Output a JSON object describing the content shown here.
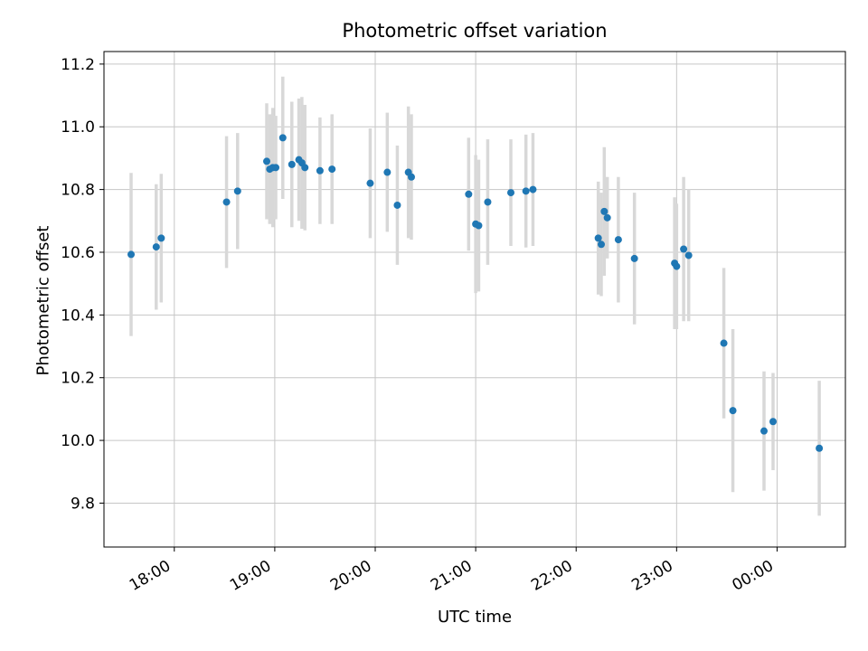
{
  "chart_data": {
    "type": "scatter",
    "title": "Photometric offset variation",
    "xlabel": "UTC time",
    "ylabel": "Photometric offset",
    "grid": true,
    "legend": "none",
    "xlim": [
      17.3,
      24.68
    ],
    "ylim": [
      9.66,
      11.24
    ],
    "x_ticks": [
      {
        "v": 18,
        "label": "18:00"
      },
      {
        "v": 19,
        "label": "19:00"
      },
      {
        "v": 20,
        "label": "20:00"
      },
      {
        "v": 21,
        "label": "21:00"
      },
      {
        "v": 22,
        "label": "22:00"
      },
      {
        "v": 23,
        "label": "23:00"
      },
      {
        "v": 24,
        "label": "00:00"
      }
    ],
    "y_ticks": [
      {
        "v": 9.8,
        "label": "9.8"
      },
      {
        "v": 10.0,
        "label": "10.0"
      },
      {
        "v": 10.2,
        "label": "10.2"
      },
      {
        "v": 10.4,
        "label": "10.4"
      },
      {
        "v": 10.6,
        "label": "10.6"
      },
      {
        "v": 10.8,
        "label": "10.8"
      },
      {
        "v": 11.0,
        "label": "11.0"
      },
      {
        "v": 11.2,
        "label": "11.2"
      }
    ],
    "marker_color": "#1f77b4",
    "errorbar_color": "#d8d8d8",
    "grid_color": "#c6c6c6",
    "spine_color": "#000000",
    "tick_label_color": "#000000",
    "points_format": [
      "utc_hour_decimal",
      "photometric_offset",
      "error"
    ],
    "points": [
      [
        17.57,
        10.593,
        0.26
      ],
      [
        17.82,
        10.617,
        0.2
      ],
      [
        17.87,
        10.645,
        0.205
      ],
      [
        18.52,
        10.76,
        0.21
      ],
      [
        18.63,
        10.795,
        0.185
      ],
      [
        18.92,
        10.89,
        0.185
      ],
      [
        18.95,
        10.865,
        0.175
      ],
      [
        18.98,
        10.87,
        0.19
      ],
      [
        19.01,
        10.87,
        0.165
      ],
      [
        19.08,
        10.965,
        0.195
      ],
      [
        19.17,
        10.88,
        0.2
      ],
      [
        19.24,
        10.895,
        0.195
      ],
      [
        19.27,
        10.885,
        0.21
      ],
      [
        19.3,
        10.87,
        0.2
      ],
      [
        19.45,
        10.86,
        0.17
      ],
      [
        19.57,
        10.865,
        0.175
      ],
      [
        19.95,
        10.82,
        0.175
      ],
      [
        20.12,
        10.855,
        0.19
      ],
      [
        20.22,
        10.75,
        0.19
      ],
      [
        20.33,
        10.855,
        0.21
      ],
      [
        20.36,
        10.84,
        0.2
      ],
      [
        20.93,
        10.785,
        0.18
      ],
      [
        21.0,
        10.69,
        0.22
      ],
      [
        21.03,
        10.685,
        0.21
      ],
      [
        21.12,
        10.76,
        0.2
      ],
      [
        21.35,
        10.79,
        0.17
      ],
      [
        21.5,
        10.795,
        0.18
      ],
      [
        21.57,
        10.8,
        0.18
      ],
      [
        22.22,
        10.645,
        0.18
      ],
      [
        22.25,
        10.625,
        0.165
      ],
      [
        22.28,
        10.73,
        0.205
      ],
      [
        22.31,
        10.71,
        0.13
      ],
      [
        22.42,
        10.64,
        0.2
      ],
      [
        22.58,
        10.58,
        0.21
      ],
      [
        22.98,
        10.565,
        0.21
      ],
      [
        23.0,
        10.555,
        0.2
      ],
      [
        23.07,
        10.61,
        0.23
      ],
      [
        23.12,
        10.59,
        0.21
      ],
      [
        23.47,
        10.31,
        0.24
      ],
      [
        23.56,
        10.095,
        0.26
      ],
      [
        23.87,
        10.03,
        0.19
      ],
      [
        23.96,
        10.06,
        0.155
      ],
      [
        24.42,
        9.975,
        0.215
      ]
    ]
  }
}
